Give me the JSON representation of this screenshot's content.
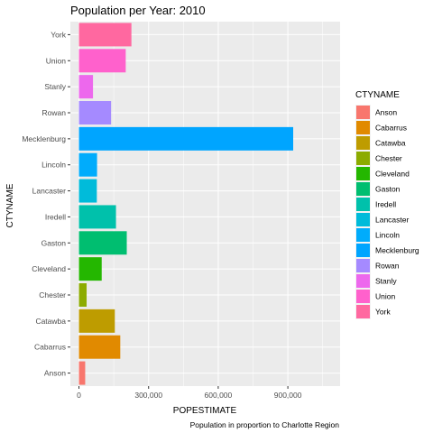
{
  "chart_data": {
    "type": "bar",
    "orientation": "horizontal",
    "title": "Population per Year: 2010",
    "xlabel": "POPESTIMATE",
    "ylabel": "CTYNAME",
    "caption": "Population in proportion to Charlotte Region",
    "xlim": [
      -37000,
      1125000
    ],
    "xticks": [
      0,
      300000,
      600000,
      900000
    ],
    "xtick_labels": [
      "0",
      "300,000",
      "600,000",
      "900,000"
    ],
    "categories": [
      "Anson",
      "Cabarrus",
      "Catawba",
      "Chester",
      "Cleveland",
      "Gaston",
      "Iredell",
      "Lancaster",
      "Lincoln",
      "Mecklenburg",
      "Rowan",
      "Stanly",
      "Union",
      "York"
    ],
    "values": [
      26900,
      178000,
      154500,
      33000,
      98000,
      206000,
      159500,
      77000,
      78000,
      923000,
      138500,
      60500,
      201500,
      226000
    ],
    "colors": [
      "#F8766D",
      "#E18A00",
      "#BE9C00",
      "#8CAB00",
      "#24B700",
      "#00BE70",
      "#00C1AB",
      "#00BBDA",
      "#00ACFC",
      "#00A5FF",
      "#A58AFF",
      "#ED68ED",
      "#FF61CC",
      "#FF68A0"
    ],
    "grid": true,
    "panel_background": "#EBEBEB",
    "legend": {
      "title": "CTYNAME",
      "placement": "right",
      "entries": [
        "Anson",
        "Cabarrus",
        "Catawba",
        "Chester",
        "Cleveland",
        "Gaston",
        "Iredell",
        "Lancaster",
        "Lincoln",
        "Mecklenburg",
        "Rowan",
        "Stanly",
        "Union",
        "York"
      ]
    }
  }
}
